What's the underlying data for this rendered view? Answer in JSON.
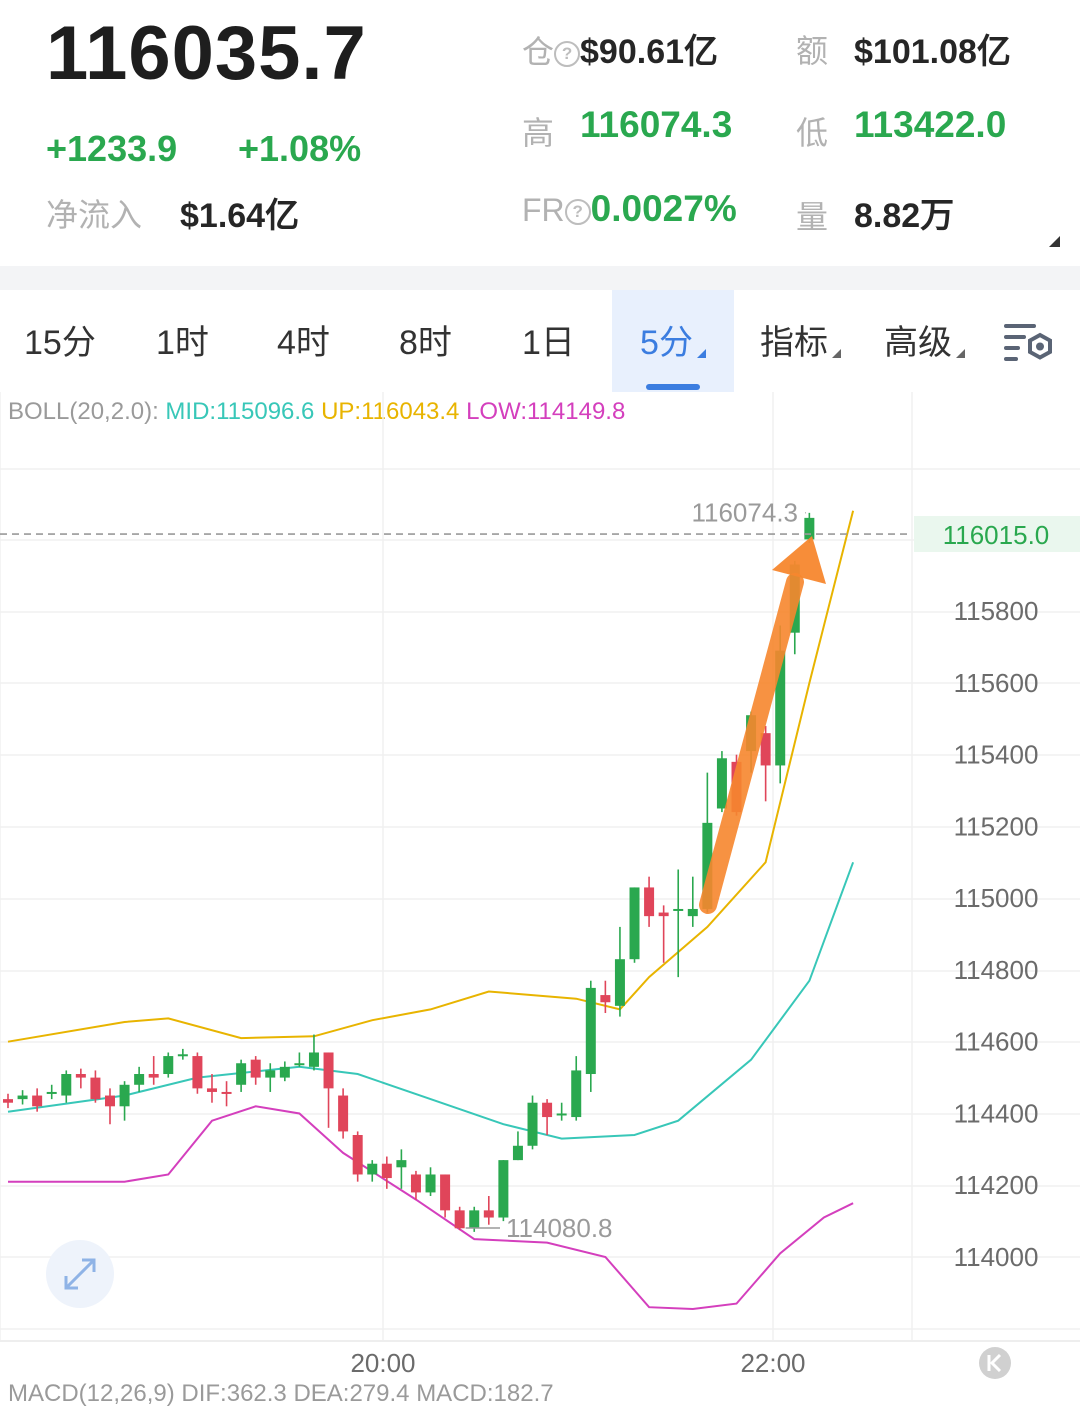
{
  "header": {
    "last_price": "116035.7",
    "change_abs": "+1233.9",
    "change_pct": "+1.08%",
    "net_inflow_label": "净流入",
    "net_inflow_value": "$1.64亿",
    "open_interest_label": "仓",
    "open_interest_value": "$90.61亿",
    "turnover_label": "额",
    "turnover_value": "$101.08亿",
    "high_label": "高",
    "high_value": "116074.3",
    "low_label": "低",
    "low_value": "113422.0",
    "funding_rate_label": "FR",
    "funding_rate_value": "0.0027%",
    "volume_label": "量",
    "volume_value": "8.82万",
    "help_glyph": "?"
  },
  "tabs": [
    {
      "label": "15分"
    },
    {
      "label": "1时"
    },
    {
      "label": "4时"
    },
    {
      "label": "8时"
    },
    {
      "label": "1日"
    },
    {
      "label": "5分",
      "active": true
    },
    {
      "label": "指标"
    },
    {
      "label": "高级"
    }
  ],
  "indicator": {
    "boll_name": "BOLL(20,2.0):",
    "mid": "MID:115096.6",
    "up": "UP:116043.4",
    "low": "LOW:114149.8",
    "macd_text": "MACD(12,26,9) DIF:362.3 DEA:279.4 MACD:182.7"
  },
  "colors": {
    "up": "#2aa84f",
    "down": "#e0455a",
    "boll_mid": "#38c7b8",
    "boll_up": "#e8b400",
    "boll_low": "#d43fbd",
    "arrow": "#f7872e",
    "active_tab": "#3b7de0"
  },
  "icons": [
    "settings-gear-icon",
    "expand-arrows-icon",
    "scroll-to-latest-icon"
  ],
  "chart_data": {
    "type": "candlestick",
    "y_ticks": [
      114000,
      114200,
      114400,
      114600,
      114800,
      115000,
      115200,
      115400,
      115600,
      115800
    ],
    "ylim": [
      113800,
      116300
    ],
    "x_ticks": [
      "20:00",
      "22:00"
    ],
    "current_price": "116015.0",
    "high_marker": "116074.3",
    "low_marker": "114080.8",
    "candles": [
      [
        114440,
        114430,
        114455,
        114415
      ],
      [
        114440,
        114450,
        114465,
        114425
      ],
      [
        114450,
        114420,
        114470,
        114405
      ],
      [
        114455,
        114460,
        114480,
        114440
      ],
      [
        114450,
        114510,
        114520,
        114430
      ],
      [
        114510,
        114500,
        114525,
        114470
      ],
      [
        114500,
        114440,
        114520,
        114430
      ],
      [
        114450,
        114420,
        114470,
        114370
      ],
      [
        114420,
        114480,
        114490,
        114380
      ],
      [
        114480,
        114510,
        114530,
        114460
      ],
      [
        114510,
        114500,
        114560,
        114480
      ],
      [
        114510,
        114560,
        114570,
        114500
      ],
      [
        114565,
        114565,
        114580,
        114550
      ],
      [
        114560,
        114470,
        114570,
        114455
      ],
      [
        114470,
        114460,
        114510,
        114430
      ],
      [
        114460,
        114455,
        114490,
        114420
      ],
      [
        114480,
        114540,
        114550,
        114460
      ],
      [
        114550,
        114500,
        114560,
        114480
      ],
      [
        114500,
        114520,
        114540,
        114460
      ],
      [
        114500,
        114530,
        114545,
        114490
      ],
      [
        114540,
        114540,
        114570,
        114530
      ],
      [
        114530,
        114570,
        114620,
        114520
      ],
      [
        114570,
        114470,
        114570,
        114360
      ],
      [
        114450,
        114350,
        114470,
        114330
      ],
      [
        114340,
        114230,
        114350,
        114210
      ],
      [
        114230,
        114260,
        114270,
        114210
      ],
      [
        114260,
        114220,
        114280,
        114190
      ],
      [
        114250,
        114270,
        114300,
        114190
      ],
      [
        114230,
        114180,
        114240,
        114160
      ],
      [
        114180,
        114230,
        114250,
        114170
      ],
      [
        114230,
        114130,
        114230,
        114110
      ],
      [
        114130,
        114080,
        114140,
        114075
      ],
      [
        114080,
        114130,
        114140,
        114070
      ],
      [
        114130,
        114110,
        114170,
        114090
      ],
      [
        114110,
        114270,
        114270,
        114100
      ],
      [
        114270,
        114310,
        114350,
        114270
      ],
      [
        114310,
        114430,
        114450,
        114300
      ],
      [
        114430,
        114390,
        114440,
        114340
      ],
      [
        114400,
        114400,
        114430,
        114380
      ],
      [
        114390,
        114520,
        114560,
        114380
      ],
      [
        114510,
        114750,
        114770,
        114460
      ],
      [
        114730,
        114710,
        114770,
        114680
      ],
      [
        114700,
        114830,
        114920,
        114670
      ],
      [
        114830,
        115030,
        115030,
        114820
      ],
      [
        115030,
        114950,
        115060,
        114920
      ],
      [
        114960,
        114950,
        114980,
        114820
      ],
      [
        114970,
        114970,
        115080,
        114780
      ],
      [
        114950,
        114970,
        115060,
        114920
      ],
      [
        114970,
        115210,
        115350,
        114960
      ],
      [
        115250,
        115390,
        115410,
        115240
      ],
      [
        115380,
        115240,
        115400,
        115230
      ],
      [
        115410,
        115510,
        115520,
        115350
      ],
      [
        115460,
        115370,
        115480,
        115270
      ],
      [
        115370,
        115690,
        115760,
        115320
      ],
      [
        115740,
        115930,
        115940,
        115680
      ],
      [
        116000,
        116060,
        116074,
        115990
      ]
    ],
    "boll_up_line": [
      [
        0,
        114600
      ],
      [
        8,
        114655
      ],
      [
        11,
        114665
      ],
      [
        16,
        114610
      ],
      [
        21,
        114615
      ],
      [
        25,
        114660
      ],
      [
        29,
        114690
      ],
      [
        33,
        114740
      ],
      [
        39,
        114720
      ],
      [
        42,
        114690
      ],
      [
        44,
        114780
      ],
      [
        48,
        114920
      ],
      [
        52,
        115100
      ],
      [
        55,
        115600
      ],
      [
        58,
        116080
      ]
    ],
    "boll_mid_line": [
      [
        0,
        114405
      ],
      [
        8,
        114450
      ],
      [
        13,
        114500
      ],
      [
        20,
        114530
      ],
      [
        24,
        114510
      ],
      [
        29,
        114440
      ],
      [
        34,
        114370
      ],
      [
        38,
        114330
      ],
      [
        43,
        114340
      ],
      [
        46,
        114380
      ],
      [
        51,
        114550
      ],
      [
        55,
        114770
      ],
      [
        58,
        115100
      ]
    ],
    "boll_low_line": [
      [
        0,
        114210
      ],
      [
        8,
        114210
      ],
      [
        11,
        114230
      ],
      [
        14,
        114380
      ],
      [
        17,
        114420
      ],
      [
        20,
        114400
      ],
      [
        23,
        114290
      ],
      [
        28,
        114160
      ],
      [
        32,
        114050
      ],
      [
        37,
        114040
      ],
      [
        41,
        114000
      ],
      [
        44,
        113860
      ],
      [
        47,
        113855
      ],
      [
        50,
        113870
      ],
      [
        53,
        114010
      ],
      [
        56,
        114110
      ],
      [
        58,
        114150
      ]
    ]
  }
}
